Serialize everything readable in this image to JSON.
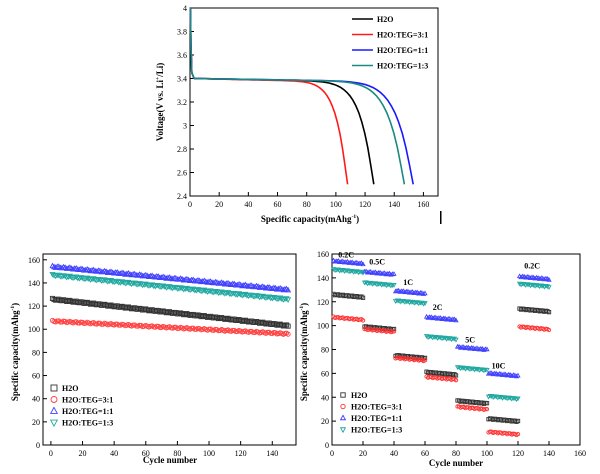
{
  "chart_data": [
    {
      "type": "line",
      "xlabel": "Specific capacity(mAhg",
      "xlabel_sup": "-1",
      "xlabel_tail": ")",
      "ylabel": "Voltage(V vs. Li",
      "ylabel_sup": "+",
      "ylabel_tail": "/Li)",
      "xlim": [
        0,
        170
      ],
      "ylim": [
        2.4,
        4.0
      ],
      "xticks": [
        0,
        20,
        40,
        60,
        80,
        100,
        120,
        140,
        160
      ],
      "yticks": [
        2.4,
        2.6,
        2.8,
        3.0,
        3.2,
        3.4,
        3.6,
        3.8,
        4.0
      ],
      "legend_position": "top-right",
      "series": [
        {
          "name": "H2O",
          "color": "#000000",
          "capacity": 126
        },
        {
          "name": "H2O:TEG=3:1",
          "color": "#ff1a1a",
          "capacity": 108
        },
        {
          "name": "H2O:TEG=1:1",
          "color": "#1a1aff",
          "capacity": 153
        },
        {
          "name": "H2O:TEG=1:3",
          "color": "#1a8a80",
          "capacity": 147
        }
      ]
    },
    {
      "type": "scatter",
      "xlabel": "Cycle number",
      "ylabel": "Specific capacity(mAhg",
      "ylabel_sup": "-1",
      "ylabel_tail": ")",
      "xlim": [
        -5,
        155
      ],
      "ylim": [
        0,
        165
      ],
      "xticks": [
        0,
        20,
        40,
        60,
        80,
        100,
        120,
        140
      ],
      "yticks": [
        0,
        20,
        40,
        60,
        80,
        100,
        120,
        140,
        160
      ],
      "legend_position": "bottom-left",
      "series": [
        {
          "name": "H2O",
          "color": "#333333",
          "marker": "square",
          "start": 126,
          "end": 103
        },
        {
          "name": "H2O:TEG=3:1",
          "color": "#ff4040",
          "marker": "circle",
          "start": 107,
          "end": 96
        },
        {
          "name": "H2O:TEG=1:1",
          "color": "#4040ff",
          "marker": "triangle-up",
          "start": 154,
          "end": 134
        },
        {
          "name": "H2O:TEG=1:3",
          "color": "#20a8a0",
          "marker": "triangle-down",
          "start": 147,
          "end": 126
        }
      ]
    },
    {
      "type": "scatter",
      "xlabel": "Cycle number",
      "ylabel": "Specific capacity(mAhg",
      "ylabel_sup": "-1",
      "ylabel_tail": ")",
      "xlim": [
        0,
        160
      ],
      "ylim": [
        0,
        160
      ],
      "xticks": [
        0,
        20,
        40,
        60,
        80,
        100,
        120,
        140,
        160
      ],
      "yticks": [
        0,
        20,
        40,
        60,
        80,
        100,
        120,
        140,
        160
      ],
      "legend_position": "bottom-left",
      "rate_labels": [
        {
          "text": "0.2C",
          "x": 4,
          "y": 157
        },
        {
          "text": "0.5C",
          "x": 24,
          "y": 151
        },
        {
          "text": "1C",
          "x": 46,
          "y": 134
        },
        {
          "text": "2C",
          "x": 65,
          "y": 113
        },
        {
          "text": "5C",
          "x": 86,
          "y": 86
        },
        {
          "text": "10C",
          "x": 103,
          "y": 64
        },
        {
          "text": "0.2C",
          "x": 124,
          "y": 148
        }
      ],
      "series": [
        {
          "name": "H2O",
          "color": "#333333",
          "marker": "square",
          "segments": [
            125,
            98,
            74,
            60,
            36,
            21,
            113
          ]
        },
        {
          "name": "H2O:TEG=3:1",
          "color": "#ff3030",
          "marker": "circle",
          "segments": [
            106,
            96,
            72,
            56,
            31,
            10,
            98
          ]
        },
        {
          "name": "H2O:TEG=1:1",
          "color": "#4040ff",
          "marker": "triangle-up",
          "segments": [
            153,
            144,
            128,
            106,
            81,
            59,
            140
          ]
        },
        {
          "name": "H2O:TEG=1:3",
          "color": "#20a8a0",
          "marker": "triangle-down",
          "segments": [
            146,
            135,
            120,
            90,
            64,
            40,
            134
          ]
        }
      ]
    }
  ]
}
